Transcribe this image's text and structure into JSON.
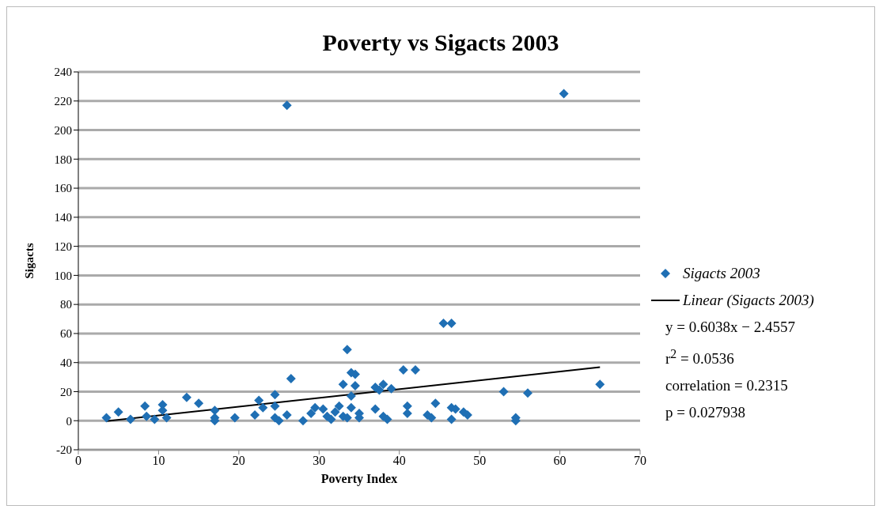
{
  "chart_data": {
    "type": "scatter",
    "title": "Poverty vs Sigacts 2003",
    "xlabel": "Poverty Index",
    "ylabel": "Sigacts",
    "xlim": [
      0,
      70
    ],
    "xticks": [
      0,
      10,
      20,
      30,
      40,
      50,
      60,
      70
    ],
    "ylim": [
      -20,
      240
    ],
    "yticks": [
      -20,
      0,
      20,
      40,
      60,
      80,
      100,
      120,
      140,
      160,
      180,
      200,
      220,
      240
    ],
    "grid": "y",
    "legend": "right",
    "marker": "diamond",
    "series": [
      {
        "name": "Sigacts 2003",
        "type": "scatter",
        "color": "#1f6fb4",
        "x": [
          3.5,
          5,
          6.5,
          8.3,
          8.5,
          9.5,
          10.5,
          10.5,
          11,
          13.5,
          15,
          17,
          17,
          17,
          19.5,
          22,
          22.5,
          23,
          24.5,
          24.5,
          24.5,
          25,
          26,
          26.5,
          26,
          28,
          29,
          29.5,
          30.5,
          31,
          31.5,
          32,
          32.5,
          33,
          33,
          33.5,
          33.5,
          34,
          34,
          34,
          34.5,
          34.5,
          35,
          35,
          37,
          37,
          37.5,
          38,
          38,
          38.5,
          39,
          40.5,
          41,
          41,
          42,
          43.5,
          44,
          44.5,
          45.5,
          46.5,
          46.5,
          46.5,
          47,
          48,
          48.5,
          53,
          54.5,
          54.5,
          56,
          60.5,
          65
        ],
        "values": [
          2,
          6,
          1,
          10,
          3,
          1,
          11,
          7,
          2,
          16,
          12,
          7,
          2,
          0,
          2,
          4,
          14,
          9,
          18,
          10,
          2,
          0,
          4,
          29,
          217,
          0,
          5,
          9,
          8,
          3,
          1,
          6,
          10,
          3,
          25,
          2,
          49,
          33,
          17,
          9,
          32,
          24,
          2,
          5,
          8,
          23,
          21,
          25,
          3,
          1,
          22,
          35,
          10,
          5,
          35,
          4,
          2,
          12,
          67,
          67,
          9,
          1,
          8,
          6,
          4,
          20,
          2,
          0,
          19,
          225,
          25
        ]
      },
      {
        "name": "Linear (Sigacts 2003)",
        "type": "line",
        "color": "#000000",
        "marker": "none",
        "x": [
          3.5,
          65
        ],
        "values": [
          -0.3,
          36.8
        ]
      }
    ],
    "annotations": [
      "y = 0.6038x − 2.4557",
      "r$^{2}$ = 0.0536",
      "correlation = 0.2315",
      "p = 0.027938"
    ]
  }
}
